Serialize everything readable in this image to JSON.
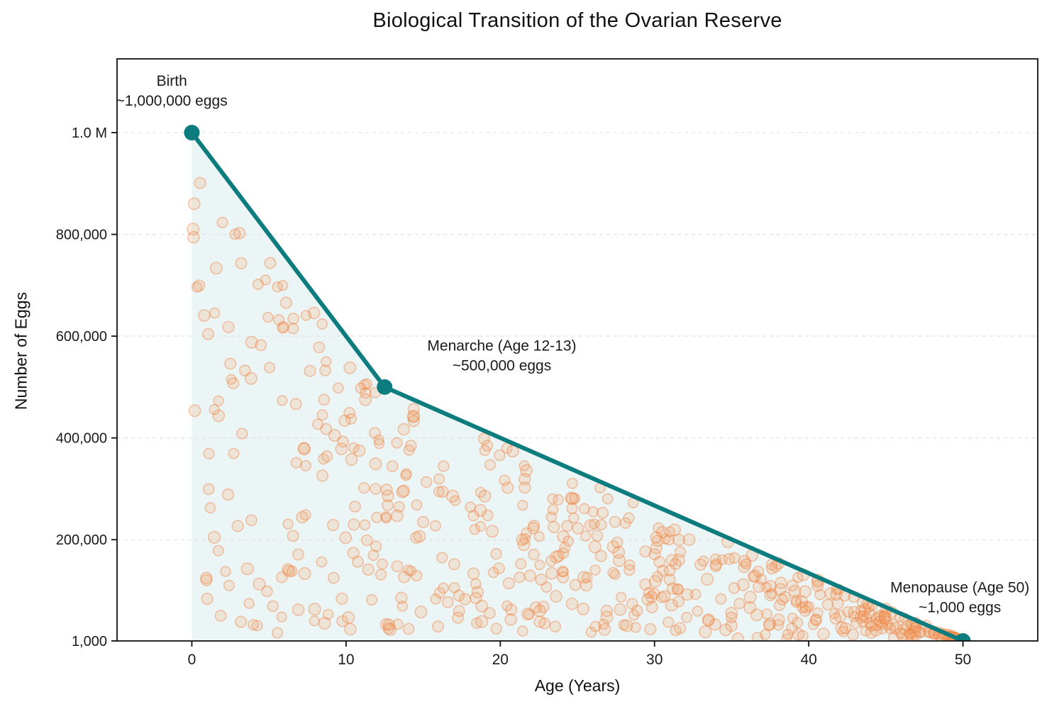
{
  "chart_data": {
    "type": "line",
    "title": "Biological Transition of the Ovarian Reserve",
    "xlabel": "Age (Years)",
    "ylabel": "Number of Eggs",
    "xlim": [
      -4.85,
      54.85
    ],
    "ylim": [
      1000,
      1145000
    ],
    "x_ticks": [
      {
        "value": 0,
        "label": "0"
      },
      {
        "value": 10,
        "label": "10"
      },
      {
        "value": 20,
        "label": "20"
      },
      {
        "value": 30,
        "label": "30"
      },
      {
        "value": 40,
        "label": "40"
      },
      {
        "value": 50,
        "label": "50"
      }
    ],
    "y_ticks": [
      {
        "value": 1000,
        "label": "1,000"
      },
      {
        "value": 200000,
        "label": "200,000"
      },
      {
        "value": 400000,
        "label": "400,000"
      },
      {
        "value": 600000,
        "label": "600,000"
      },
      {
        "value": 800000,
        "label": "800,000"
      },
      {
        "value": 1000000,
        "label": "1.0 M"
      }
    ],
    "grid": "horizontal-dashed",
    "legend": "none",
    "series": [
      {
        "name": "ovarian-reserve",
        "x": [
          0,
          12.5,
          50
        ],
        "y": [
          1000000,
          500000,
          1000
        ],
        "color": "#0d7c7e",
        "marker": "circle"
      }
    ],
    "annotations": [
      {
        "id": "birth",
        "lines": [
          "Birth",
          "~1,000,000 eggs"
        ],
        "x": -1.3,
        "y": 1080000
      },
      {
        "id": "menarche",
        "lines": [
          "Menarche (Age 12-13)",
          "~500,000 eggs"
        ],
        "x": 20.1,
        "y": 560000
      },
      {
        "id": "menopause",
        "lines": [
          "Menopause (Age 50)",
          "~1,000 eggs"
        ],
        "x": 49.8,
        "y": 85000
      }
    ],
    "egg_scatter": {
      "count": 560,
      "seed": 42,
      "fill": "rgba(245, 155, 92, 0.20)",
      "stroke": "rgba(238, 122, 58, 0.40)"
    },
    "colors": {
      "line": "#0d7c7e",
      "area_fill": "rgba(13, 124, 126, 0.08)",
      "grid": "#e2e2e2",
      "spine": "#111111",
      "text": "#1a1a1a"
    }
  }
}
